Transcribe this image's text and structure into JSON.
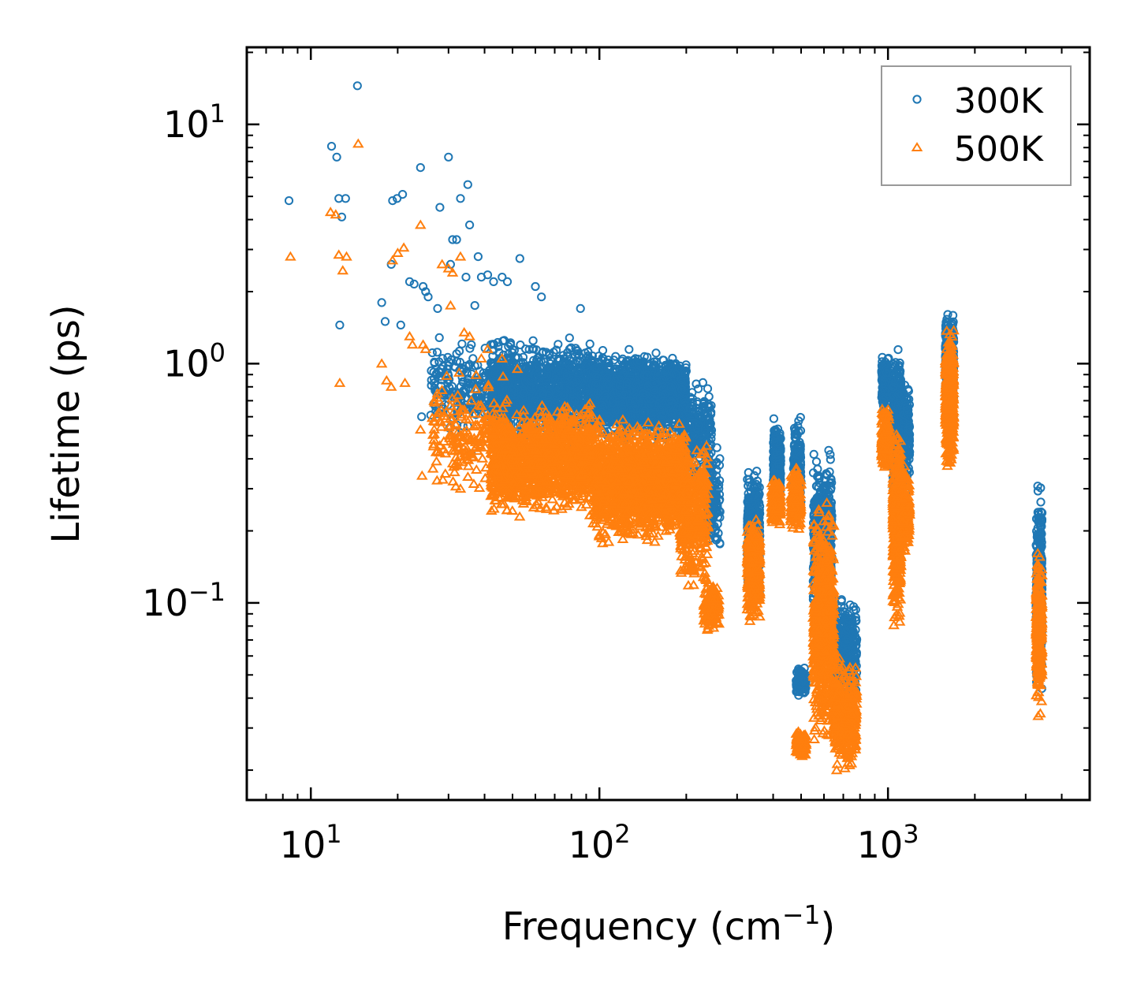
{
  "chart_data": {
    "type": "scatter",
    "title": "",
    "xlabel": "Frequency (cm",
    "xlabel_sup": "−1",
    "xlabel_end": ")",
    "ylabel": "Lifetime (ps)",
    "xscale": "log",
    "yscale": "log",
    "xlim": [
      6,
      5000
    ],
    "ylim": [
      0.015,
      21
    ],
    "x_ticks": [
      {
        "value": 10,
        "base": "10",
        "exp": "1"
      },
      {
        "value": 100,
        "base": "10",
        "exp": "2"
      },
      {
        "value": 1000,
        "base": "10",
        "exp": "3"
      }
    ],
    "y_ticks": [
      {
        "value": 0.1,
        "base": "10",
        "exp": "−1"
      },
      {
        "value": 1,
        "base": "10",
        "exp": "0"
      },
      {
        "value": 10,
        "base": "10",
        "exp": "1"
      }
    ],
    "grid": false,
    "legend_position": "top-right",
    "series": [
      {
        "name": "300K",
        "marker": "circle",
        "color": "#1f77b4",
        "points": [
          [
            8.4,
            4.8
          ],
          [
            11.8,
            8.1
          ],
          [
            12.3,
            7.3
          ],
          [
            12.5,
            4.9
          ],
          [
            13.2,
            4.9
          ],
          [
            12.8,
            4.1
          ],
          [
            12.6,
            1.45
          ],
          [
            14.5,
            14.5
          ],
          [
            17.6,
            1.8
          ],
          [
            18.1,
            1.5
          ],
          [
            19.0,
            2.6
          ],
          [
            19.2,
            4.8
          ],
          [
            19.9,
            4.9
          ],
          [
            20.8,
            5.1
          ],
          [
            22.0,
            2.2
          ],
          [
            22.8,
            2.15
          ],
          [
            20.5,
            1.45
          ],
          [
            24.0,
            6.6
          ],
          [
            24.5,
            2.1
          ],
          [
            25.0,
            2.0
          ],
          [
            25.5,
            1.9
          ],
          [
            24.2,
            0.6
          ],
          [
            27.5,
            1.7
          ],
          [
            28.0,
            4.5
          ],
          [
            30.0,
            7.3
          ],
          [
            30.5,
            2.6
          ],
          [
            31.0,
            3.3
          ],
          [
            32.0,
            3.3
          ],
          [
            33.0,
            4.9
          ],
          [
            35.0,
            5.6
          ],
          [
            35.5,
            3.8
          ],
          [
            34.5,
            2.3
          ],
          [
            36.0,
            1.2
          ],
          [
            38.0,
            2.8
          ],
          [
            39.0,
            2.3
          ],
          [
            41.0,
            2.35
          ],
          [
            43.0,
            2.2
          ],
          [
            46.0,
            2.3
          ],
          [
            48.0,
            2.2
          ],
          [
            53.0,
            2.75
          ],
          [
            60.0,
            2.1
          ],
          [
            63.0,
            1.9
          ],
          [
            86.0,
            1.7
          ],
          [
            36.0,
            0.42
          ],
          [
            28.5,
            0.66
          ],
          [
            30.0,
            0.98
          ],
          [
            32.0,
            1.1
          ],
          [
            37.0,
            1.75
          ]
        ],
        "clusters": [
          {
            "x": [
              26,
              46
            ],
            "y": [
              0.45,
              1.4
            ],
            "n": 230
          },
          {
            "x": [
              42,
              95
            ],
            "y": [
              0.45,
              1.35
            ],
            "n": 1100
          },
          {
            "x": [
              95,
              200
            ],
            "y": [
              0.45,
              1.2
            ],
            "n": 1500
          },
          {
            "x": [
              190,
              245
            ],
            "y": [
              0.28,
              0.9
            ],
            "n": 280
          },
          {
            "x": [
              235,
              262
            ],
            "y": [
              0.15,
              0.5
            ],
            "n": 120
          },
          {
            "x": [
              325,
              360
            ],
            "y": [
              0.1,
              0.4
            ],
            "n": 380
          },
          {
            "x": [
              400,
              425
            ],
            "y": [
              0.22,
              0.68
            ],
            "n": 220
          },
          {
            "x": [
              470,
              500
            ],
            "y": [
              0.2,
              0.65
            ],
            "n": 180
          },
          {
            "x": [
              480,
              520
            ],
            "y": [
              0.04,
              0.055
            ],
            "n": 150
          },
          {
            "x": [
              550,
              640
            ],
            "y": [
              0.07,
              0.5
            ],
            "n": 500
          },
          {
            "x": [
              640,
              780
            ],
            "y": [
              0.035,
              0.11
            ],
            "n": 380
          },
          {
            "x": [
              950,
              1010
            ],
            "y": [
              0.6,
              1.15
            ],
            "n": 200
          },
          {
            "x": [
              1040,
              1110
            ],
            "y": [
              0.18,
              1.4
            ],
            "n": 480
          },
          {
            "x": [
              1110,
              1190
            ],
            "y": [
              0.28,
              0.95
            ],
            "n": 180
          },
          {
            "x": [
              1580,
              1690
            ],
            "y": [
              0.5,
              1.85
            ],
            "n": 380
          },
          {
            "x": [
              3260,
              3420
            ],
            "y": [
              0.04,
              0.35
            ],
            "n": 300
          }
        ]
      },
      {
        "name": "500K",
        "marker": "triangle",
        "color": "#ff7f0e",
        "points": [
          [
            8.5,
            2.8
          ],
          [
            11.7,
            4.3
          ],
          [
            12.2,
            4.2
          ],
          [
            12.5,
            2.85
          ],
          [
            12.9,
            2.45
          ],
          [
            13.3,
            2.8
          ],
          [
            12.6,
            0.83
          ],
          [
            14.6,
            8.3
          ],
          [
            17.6,
            1.0
          ],
          [
            18.3,
            0.85
          ],
          [
            19.0,
            0.8
          ],
          [
            19.2,
            2.7
          ],
          [
            20.0,
            2.9
          ],
          [
            21.0,
            3.05
          ],
          [
            21.2,
            0.83
          ],
          [
            22.0,
            1.3
          ],
          [
            22.5,
            1.2
          ],
          [
            24.0,
            3.8
          ],
          [
            24.5,
            1.2
          ],
          [
            25.0,
            1.15
          ],
          [
            24.0,
            0.53
          ],
          [
            24.3,
            0.34
          ],
          [
            27.5,
            0.43
          ],
          [
            28.5,
            2.6
          ],
          [
            30.0,
            2.5
          ],
          [
            30.5,
            1.75
          ],
          [
            31.0,
            2.4
          ],
          [
            33.0,
            2.8
          ],
          [
            34.0,
            1.35
          ],
          [
            35.5,
            1.3
          ],
          [
            36.0,
            0.7
          ],
          [
            30.5,
            0.55
          ],
          [
            33.0,
            0.3
          ],
          [
            37.5,
            0.36
          ],
          [
            39.0,
            1.05
          ],
          [
            41.0,
            1.15
          ],
          [
            46.0,
            1.05
          ],
          [
            52.0,
            0.95
          ]
        ],
        "clusters": [
          {
            "x": [
              26,
              48
            ],
            "y": [
              0.25,
              1.0
            ],
            "n": 200
          },
          {
            "x": [
              42,
              95
            ],
            "y": [
              0.22,
              0.72
            ],
            "n": 1300
          },
          {
            "x": [
              95,
              200
            ],
            "y": [
              0.17,
              0.62
            ],
            "n": 1700
          },
          {
            "x": [
              190,
              238
            ],
            "y": [
              0.1,
              0.55
            ],
            "n": 360
          },
          {
            "x": [
              230,
              260
            ],
            "y": [
              0.07,
              0.13
            ],
            "n": 140
          },
          {
            "x": [
              325,
              360
            ],
            "y": [
              0.08,
              0.25
            ],
            "n": 380
          },
          {
            "x": [
              395,
              425
            ],
            "y": [
              0.2,
              0.35
            ],
            "n": 180
          },
          {
            "x": [
              460,
              500
            ],
            "y": [
              0.18,
              0.4
            ],
            "n": 160
          },
          {
            "x": [
              480,
              520
            ],
            "y": [
              0.022,
              0.03
            ],
            "n": 150
          },
          {
            "x": [
              550,
              650
            ],
            "y": [
              0.02,
              0.33
            ],
            "n": 650
          },
          {
            "x": [
              650,
              780
            ],
            "y": [
              0.018,
              0.065
            ],
            "n": 350
          },
          {
            "x": [
              950,
              1010
            ],
            "y": [
              0.35,
              0.7
            ],
            "n": 200
          },
          {
            "x": [
              1040,
              1110
            ],
            "y": [
              0.07,
              0.7
            ],
            "n": 450
          },
          {
            "x": [
              1110,
              1190
            ],
            "y": [
              0.15,
              0.4
            ],
            "n": 170
          },
          {
            "x": [
              1580,
              1690
            ],
            "y": [
              0.33,
              1.5
            ],
            "n": 380
          },
          {
            "x": [
              3260,
              3420
            ],
            "y": [
              0.03,
              0.19
            ],
            "n": 320
          }
        ]
      }
    ]
  }
}
